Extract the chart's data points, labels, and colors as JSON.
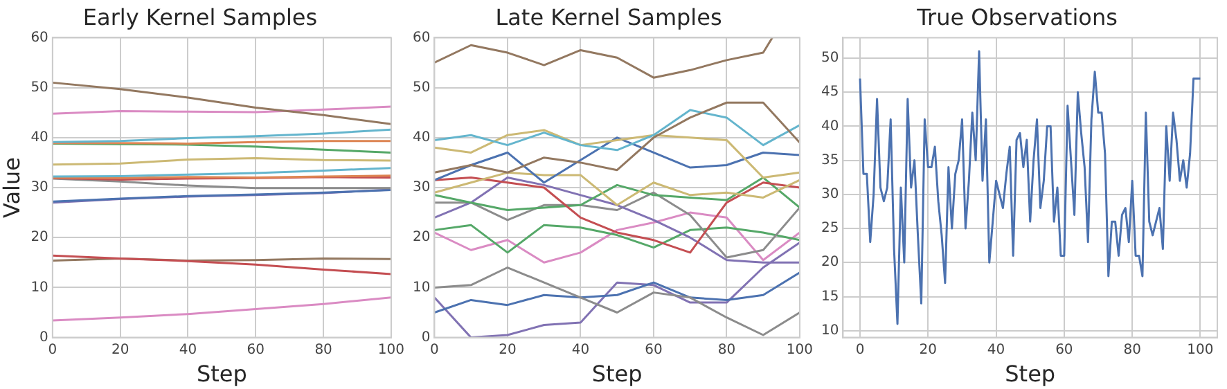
{
  "chart_data": [
    {
      "type": "line",
      "title": "Early Kernel Samples",
      "xlabel": "Step",
      "ylabel": "Value",
      "xlim": [
        0,
        100
      ],
      "xticks": [
        0,
        20,
        40,
        60,
        80,
        100
      ],
      "ylim": [
        0,
        60
      ],
      "yticks": [
        0,
        10,
        20,
        30,
        40,
        50,
        60
      ],
      "grid": true,
      "x": [
        0,
        20,
        40,
        60,
        80,
        100
      ],
      "series": [
        {
          "color": "#937860",
          "values": [
            51,
            49.7,
            48,
            46,
            44.5,
            42.7
          ]
        },
        {
          "color": "#da8bc3",
          "values": [
            44.8,
            45.3,
            45.2,
            45.1,
            45.6,
            46.2
          ]
        },
        {
          "color": "#64b5cd",
          "values": [
            39.1,
            39.3,
            39.9,
            40.3,
            40.8,
            41.6
          ]
        },
        {
          "color": "#dd8452",
          "values": [
            38.9,
            38.9,
            38.8,
            39.1,
            39.3,
            39.3
          ]
        },
        {
          "color": "#55a868",
          "values": [
            38.8,
            38.7,
            38.6,
            38.2,
            37.6,
            37
          ]
        },
        {
          "color": "#ccb974",
          "values": [
            34.6,
            34.8,
            35.6,
            35.9,
            35.5,
            35.4
          ]
        },
        {
          "color": "#64b5cd",
          "values": [
            32.2,
            32.3,
            32.6,
            32.9,
            33.4,
            33.9
          ]
        },
        {
          "color": "#dd8452",
          "values": [
            32,
            31.9,
            32.1,
            32,
            32.2,
            32.4
          ]
        },
        {
          "color": "#c44e52",
          "values": [
            31.9,
            31.6,
            31.8,
            31.9,
            32.1,
            32
          ]
        },
        {
          "color": "#8c8c8c",
          "values": [
            31.8,
            31.2,
            30.4,
            29.9,
            29.9,
            29.9
          ]
        },
        {
          "color": "#4c72b0",
          "values": [
            27.2,
            27.8,
            28.3,
            28.6,
            29,
            29.5
          ]
        },
        {
          "color": "#8172b3",
          "values": [
            27,
            27.7,
            28.2,
            28.5,
            28.9,
            29.6
          ]
        },
        {
          "color": "#c44e52",
          "values": [
            16.4,
            15.8,
            15.3,
            14.6,
            13.6,
            12.7
          ]
        },
        {
          "color": "#937860",
          "values": [
            15.4,
            15.8,
            15.4,
            15.5,
            15.8,
            15.7
          ]
        },
        {
          "color": "#da8bc3",
          "values": [
            3.4,
            4,
            4.7,
            5.7,
            6.7,
            8
          ]
        }
      ]
    },
    {
      "type": "line",
      "title": "Late Kernel Samples",
      "xlabel": "Step",
      "xlim": [
        0,
        100
      ],
      "xticks": [
        0,
        20,
        40,
        60,
        80,
        100
      ],
      "ylim": [
        0,
        60
      ],
      "yticks": [
        0,
        10,
        20,
        30,
        40,
        50,
        60
      ],
      "grid": true,
      "x": [
        0,
        10,
        20,
        30,
        40,
        50,
        60,
        70,
        80,
        90,
        100
      ],
      "series": [
        {
          "color": "#937860",
          "x": [
            0,
            10,
            20,
            30,
            40,
            50,
            60,
            70,
            80,
            90,
            92.5
          ],
          "values": [
            55,
            58.5,
            57,
            54.5,
            57.5,
            56,
            52,
            53.5,
            55.5,
            57,
            60
          ]
        },
        {
          "color": "#937860",
          "values": [
            33,
            34.5,
            33,
            36,
            35,
            33.5,
            40,
            44,
            47,
            47,
            39
          ]
        },
        {
          "color": "#64b5cd",
          "values": [
            39.5,
            40.5,
            38.5,
            41,
            38.5,
            37.5,
            40.5,
            45.5,
            44,
            38.5,
            42.5
          ]
        },
        {
          "color": "#ccb974",
          "values": [
            38,
            37,
            40.5,
            41.5,
            38.5,
            39.5,
            40.5,
            40,
            39.5,
            32,
            33
          ]
        },
        {
          "color": "#4c72b0",
          "values": [
            31.5,
            34.5,
            37,
            31,
            35.5,
            40,
            37,
            34,
            34.5,
            37,
            36.5
          ]
        },
        {
          "color": "#ccb974",
          "values": [
            29,
            31,
            33,
            32.5,
            32.5,
            26.5,
            31,
            28.5,
            29,
            28,
            31.5
          ]
        },
        {
          "color": "#c44e52",
          "values": [
            31.5,
            32,
            31,
            30,
            24,
            21,
            19.5,
            17,
            27,
            31,
            30
          ]
        },
        {
          "color": "#55a868",
          "values": [
            28.5,
            27,
            25.5,
            26,
            26.5,
            30.5,
            28.5,
            28,
            27.5,
            32,
            26
          ]
        },
        {
          "color": "#8172b3",
          "values": [
            24,
            27,
            32,
            30.5,
            28.5,
            26.5,
            23.5,
            20,
            15.5,
            15,
            15
          ]
        },
        {
          "color": "#8c8c8c",
          "values": [
            27,
            27,
            23.5,
            26.5,
            26.5,
            25.5,
            29,
            24.5,
            16,
            17.5,
            26
          ]
        },
        {
          "color": "#55a868",
          "values": [
            21.5,
            22.5,
            17,
            22.5,
            22,
            20.5,
            18,
            21.5,
            22,
            21,
            19.5
          ]
        },
        {
          "color": "#da8bc3",
          "values": [
            21,
            17.5,
            19.5,
            15,
            17,
            21.5,
            23,
            25,
            24,
            15.5,
            21
          ]
        },
        {
          "color": "#8c8c8c",
          "values": [
            10,
            10.5,
            14,
            11,
            8,
            5,
            9,
            8,
            4,
            0.5,
            5
          ]
        },
        {
          "color": "#4c72b0",
          "values": [
            5,
            7.5,
            6.5,
            8.5,
            8,
            8.5,
            11,
            8,
            7.5,
            8.5,
            13
          ]
        },
        {
          "color": "#8172b3",
          "values": [
            8,
            0,
            0.5,
            2.5,
            3,
            11,
            10.5,
            7,
            7,
            14,
            19
          ]
        }
      ]
    },
    {
      "type": "line",
      "title": "True Observations",
      "xlabel": "Step",
      "xlim": [
        -5,
        105
      ],
      "xticks": [
        0,
        20,
        40,
        60,
        80,
        100
      ],
      "ylim": [
        9,
        53
      ],
      "yticks": [
        10,
        15,
        20,
        25,
        30,
        35,
        40,
        45,
        50
      ],
      "grid": true,
      "x": [
        0,
        1,
        2,
        3,
        4,
        5,
        6,
        7,
        8,
        9,
        10,
        11,
        12,
        13,
        14,
        15,
        16,
        17,
        18,
        19,
        20,
        21,
        22,
        23,
        24,
        25,
        26,
        27,
        28,
        29,
        30,
        31,
        32,
        33,
        34,
        35,
        36,
        37,
        38,
        39,
        40,
        41,
        42,
        43,
        44,
        45,
        46,
        47,
        48,
        49,
        50,
        51,
        52,
        53,
        54,
        55,
        56,
        57,
        58,
        59,
        60,
        61,
        62,
        63,
        64,
        65,
        66,
        67,
        68,
        69,
        70,
        71,
        72,
        73,
        74,
        75,
        76,
        77,
        78,
        79,
        80,
        81,
        82,
        83,
        84,
        85,
        86,
        87,
        88,
        89,
        90,
        91,
        92,
        93,
        94,
        95,
        96,
        97,
        98,
        99,
        100
      ],
      "series": [
        {
          "color": "#4c72b0",
          "values": [
            47,
            33,
            33,
            23,
            30,
            44,
            31,
            29,
            31,
            41,
            22,
            11,
            31,
            20,
            44,
            31,
            35,
            24,
            14,
            41,
            34,
            34,
            37,
            29,
            24,
            17,
            34,
            25,
            33,
            35,
            41,
            25,
            32,
            42,
            35,
            51,
            32,
            41,
            20,
            26,
            32,
            30,
            28,
            33,
            37,
            21,
            38,
            39,
            34,
            38,
            26,
            35,
            41,
            28,
            32,
            40,
            40,
            26,
            31,
            21,
            21,
            43,
            35,
            27,
            45,
            39,
            34,
            23,
            41,
            48,
            42,
            42,
            36,
            18,
            26,
            26,
            21,
            27,
            28,
            23,
            32,
            21,
            21,
            18,
            42,
            26,
            24,
            26,
            28,
            22,
            40,
            32,
            42,
            38,
            32,
            35,
            31,
            36,
            47,
            47,
            47
          ]
        }
      ]
    }
  ]
}
